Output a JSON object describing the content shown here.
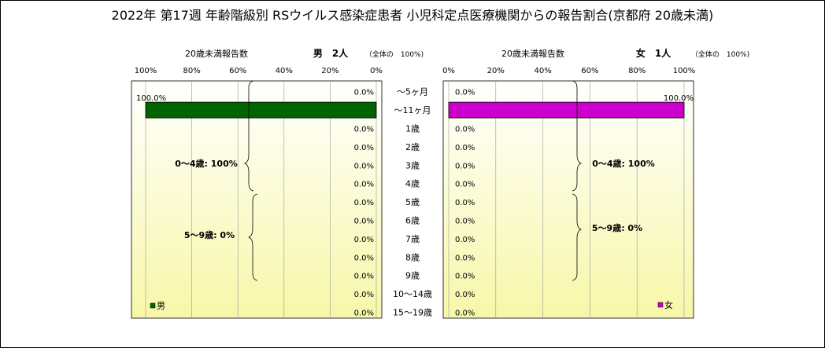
{
  "title": "2022年 第17週 年齢階級別 RSウイルス感染症患者 小児科定点医療機関からの報告割合(京都府 20歳未満)",
  "colors": {
    "male_bar": "#006400",
    "female_bar": "#cc00cc",
    "plot_bg_top": "#ffffff",
    "plot_bg_bottom": "#f7f7a8"
  },
  "male_panel": {
    "subtitle": "20歳未満報告数",
    "count_label": "男　2人",
    "total_label": "（全体の　100%)",
    "legend": "男",
    "brace_0_4": "0〜4歳: 100%",
    "brace_5_9": "5〜9歳: 0%"
  },
  "female_panel": {
    "subtitle": "20歳未満報告数",
    "count_label": "女　1人",
    "total_label": "（全体の　100%)",
    "legend": "女",
    "brace_0_4": "0〜4歳: 100%",
    "brace_5_9": "5〜9歳: 0%"
  },
  "chart_data": {
    "type": "bar",
    "orientation": "horizontal",
    "layout": "population-pyramid",
    "categories": [
      "〜5ヶ月",
      "〜11ヶ月",
      "1歳",
      "2歳",
      "3歳",
      "4歳",
      "5歳",
      "6歳",
      "7歳",
      "8歳",
      "9歳",
      "10〜14歳",
      "15〜19歳"
    ],
    "series": [
      {
        "name": "男",
        "values": [
          0,
          100,
          0,
          0,
          0,
          0,
          0,
          0,
          0,
          0,
          0,
          0,
          0
        ],
        "labels": [
          "0.0%",
          "100.0%",
          "0.0%",
          "0.0%",
          "0.0%",
          "0.0%",
          "0.0%",
          "0.0%",
          "0.0%",
          "0.0%",
          "0.0%",
          "0.0%",
          "0.0%"
        ]
      },
      {
        "name": "女",
        "values": [
          0,
          100,
          0,
          0,
          0,
          0,
          0,
          0,
          0,
          0,
          0,
          0,
          0
        ],
        "labels": [
          "0.0%",
          "100.0%",
          "0.0%",
          "0.0%",
          "0.0%",
          "0.0%",
          "0.0%",
          "0.0%",
          "0.0%",
          "0.0%",
          "0.0%",
          "0.0%",
          "0.0%"
        ]
      }
    ],
    "xlim": [
      0,
      100
    ],
    "xticks_male": [
      "100%",
      "80%",
      "60%",
      "40%",
      "20%",
      "0%"
    ],
    "xticks_female": [
      "0%",
      "20%",
      "40%",
      "60%",
      "80%",
      "100%"
    ],
    "grid": true,
    "legend_position": "bottom"
  }
}
